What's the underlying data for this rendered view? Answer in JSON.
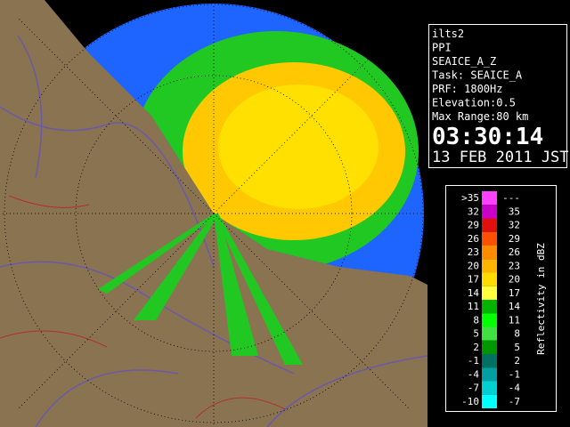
{
  "info": {
    "lines": [
      "ilts2",
      "PPI",
      "SEAICE_A_Z",
      "Task: SEAICE_A",
      "PRF: 1800Hz",
      "Elevation:0.5",
      "Max Range:80 km"
    ],
    "time": "03:30:14",
    "date": "13 FEB 2011 JST"
  },
  "legend": {
    "title": "Reflectivity in dBZ",
    "rows": [
      {
        "low": ">35",
        "high": "---",
        "color": "#ff40ff"
      },
      {
        "low": "32",
        "high": "35",
        "color": "#c800c8"
      },
      {
        "low": "29",
        "high": "32",
        "color": "#e01010"
      },
      {
        "low": "26",
        "high": "29",
        "color": "#ff5000"
      },
      {
        "low": "23",
        "high": "26",
        "color": "#ff8c00"
      },
      {
        "low": "20",
        "high": "23",
        "color": "#ffb400"
      },
      {
        "low": "17",
        "high": "20",
        "color": "#ffdc00"
      },
      {
        "low": "14",
        "high": "17",
        "color": "#ffff40"
      },
      {
        "low": "11",
        "high": "14",
        "color": "#00b400"
      },
      {
        "low": "8",
        "high": "11",
        "color": "#00ff00"
      },
      {
        "low": "5",
        "high": "8",
        "color": "#40e040"
      },
      {
        "low": "2",
        "high": "5",
        "color": "#009600"
      },
      {
        "low": "-1",
        "high": "2",
        "color": "#007060"
      },
      {
        "low": "-4",
        "high": "-1",
        "color": "#00a0a0"
      },
      {
        "low": "-7",
        "high": "-4",
        "color": "#00d0d0"
      },
      {
        "low": "-10",
        "high": "-7",
        "color": "#00ffff"
      }
    ]
  }
}
